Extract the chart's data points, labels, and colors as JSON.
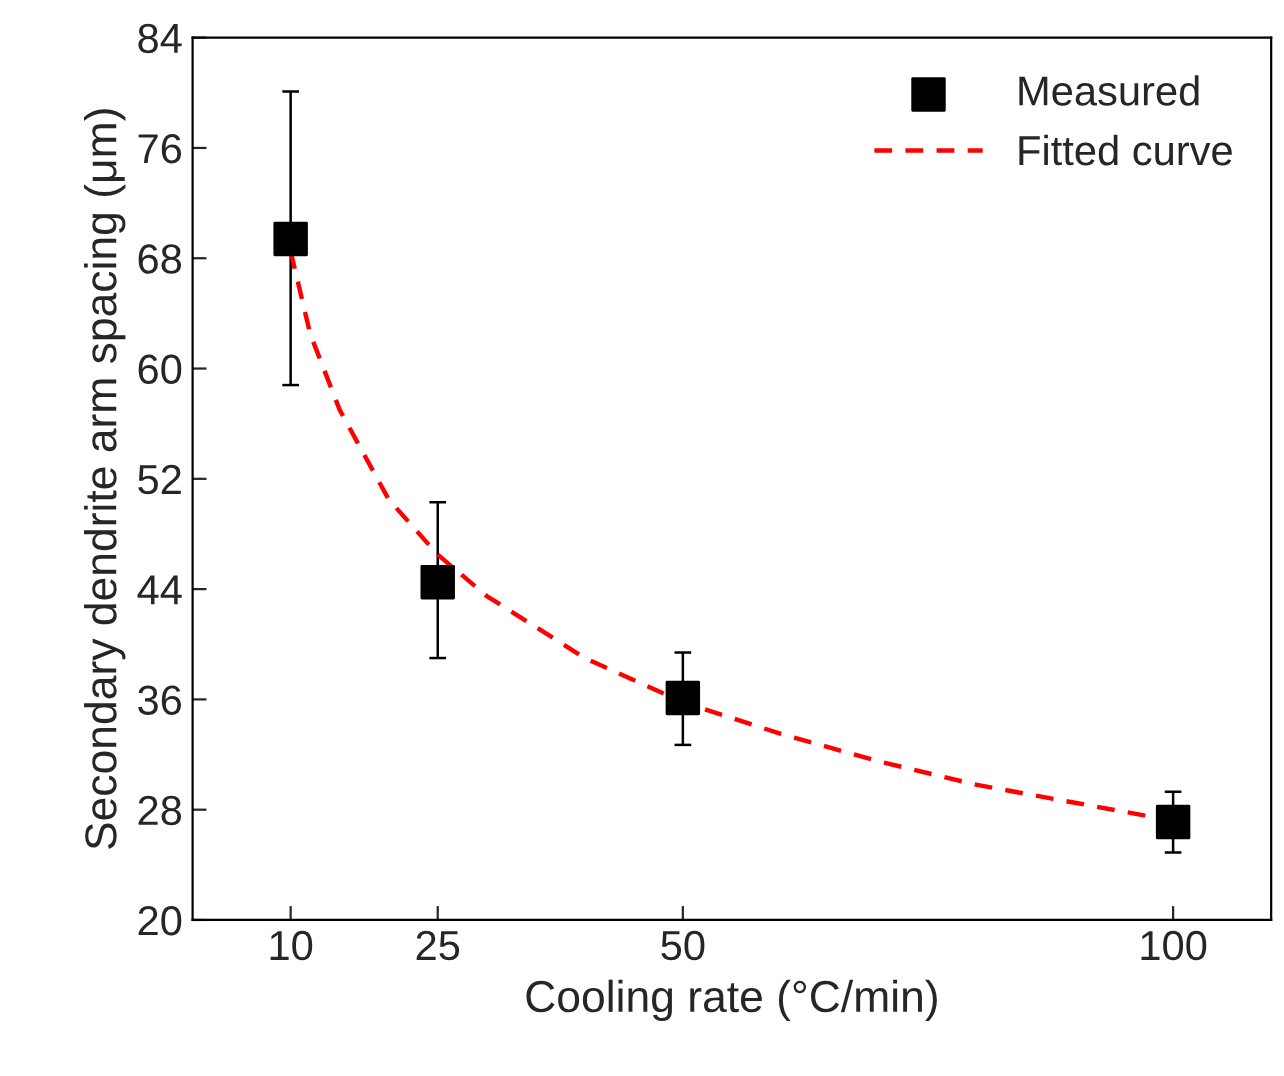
{
  "chart_data": {
    "type": "scatter",
    "xlabel": "Cooling rate (°C/min)",
    "ylabel": "Secondary dendrite arm spacing (μm)",
    "xlim": [
      0,
      110
    ],
    "xticks": [
      10,
      25,
      50,
      100
    ],
    "ylim": [
      20,
      84
    ],
    "yticks": [
      20,
      28,
      36,
      44,
      52,
      60,
      68,
      76,
      84
    ],
    "legend": "top right",
    "grid": false,
    "series": [
      {
        "name": "Measured",
        "marker": "square",
        "color": "#000000",
        "x": [
          10,
          25,
          50,
          100
        ],
        "values": [
          69.4,
          44.5,
          36.1,
          27.1
        ],
        "errors": [
          [
            58.8,
            80.1
          ],
          [
            39.0,
            50.3
          ],
          [
            32.7,
            39.4
          ],
          [
            24.9,
            29.3
          ]
        ]
      },
      {
        "name": "Fitted curve",
        "type": "line",
        "line_style": "dashed",
        "marker": "none",
        "color": "#ff0000",
        "x": [
          10,
          12,
          15,
          20,
          25,
          30,
          40,
          50,
          60,
          70,
          80,
          90,
          100
        ],
        "values": [
          68.5,
          62.5,
          57,
          50.5,
          46.5,
          43.5,
          39,
          35.8,
          33.5,
          31.5,
          29.8,
          28.5,
          27.2
        ]
      }
    ]
  }
}
